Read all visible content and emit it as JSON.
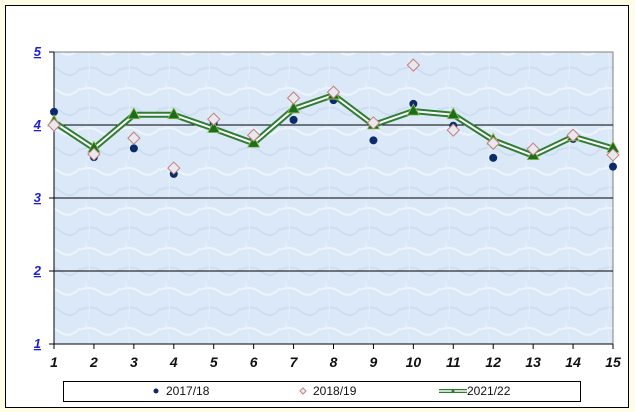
{
  "chart_data": {
    "type": "line",
    "title": "",
    "xlabel": "",
    "ylabel": "",
    "x": [
      1,
      2,
      3,
      4,
      5,
      6,
      7,
      8,
      9,
      10,
      11,
      12,
      13,
      14,
      15
    ],
    "ylim": [
      1,
      5
    ],
    "yticks": [
      "1",
      "2",
      "3",
      "4",
      "5"
    ],
    "grid": true,
    "legend_position": "bottom",
    "series": [
      {
        "name": "2017/18",
        "style": "markers-dot",
        "color": "#0d2a6b",
        "values": [
          4.18,
          3.56,
          3.68,
          3.33,
          4.03,
          3.82,
          4.07,
          4.34,
          3.79,
          4.29,
          3.99,
          3.55,
          3.63,
          3.81,
          3.43
        ]
      },
      {
        "name": "2018/19",
        "style": "markers-diamond",
        "color": "#c08080",
        "values": [
          4.0,
          3.6,
          3.82,
          3.41,
          4.08,
          3.86,
          4.37,
          4.45,
          4.03,
          4.82,
          3.93,
          3.75,
          3.67,
          3.86,
          3.59
        ]
      },
      {
        "name": "2021/22",
        "style": "double-line-triangle",
        "color": "#2e7d32",
        "values": [
          4.04,
          3.68,
          4.14,
          4.14,
          3.95,
          3.75,
          4.22,
          4.41,
          4.0,
          4.19,
          4.14,
          3.79,
          3.58,
          3.84,
          3.68
        ]
      }
    ]
  },
  "legend": {
    "items": [
      {
        "label": "2017/18"
      },
      {
        "label": "2018/19"
      },
      {
        "label": "2021/22"
      }
    ]
  }
}
